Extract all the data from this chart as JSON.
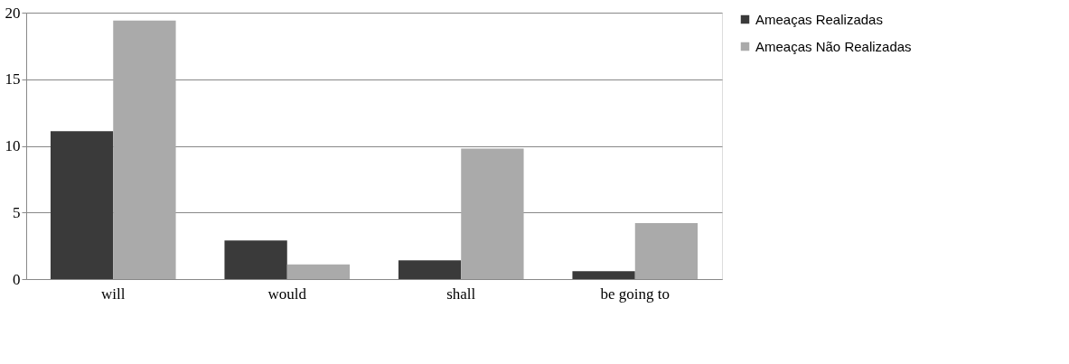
{
  "chart_data": {
    "type": "bar",
    "categories": [
      "will",
      "would",
      "shall",
      "be going to"
    ],
    "series": [
      {
        "name": "Ameaças Realizadas",
        "color": "#3a3a3a",
        "values": [
          11.1,
          2.9,
          1.4,
          0.6
        ]
      },
      {
        "name": "Ameaças Não Realizadas",
        "color": "#aaaaaa",
        "values": [
          19.4,
          1.1,
          9.8,
          4.2
        ]
      }
    ],
    "ylim": [
      0,
      20
    ],
    "yticks": [
      0,
      5,
      10,
      15,
      20
    ],
    "grid": "y",
    "legend": "right"
  }
}
